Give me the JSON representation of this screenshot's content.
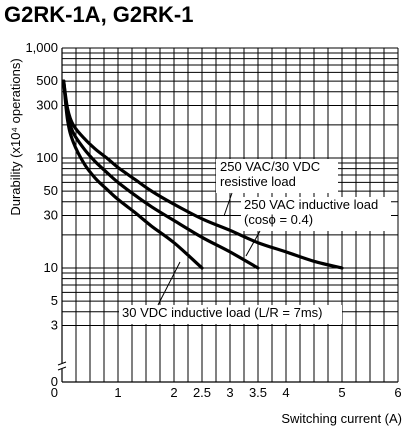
{
  "chart_data": {
    "type": "line",
    "title": "G2RK-1A, G2RK-1",
    "xlabel": "Switching current (A)",
    "ylabel": "Durability (x10⁴ operations)",
    "x_ticks": [
      {
        "value": 0,
        "label": "0"
      },
      {
        "value": 1,
        "label": "1"
      },
      {
        "value": 2,
        "label": "2"
      },
      {
        "value": 2.5,
        "label": "2.5"
      },
      {
        "value": 3,
        "label": "3"
      },
      {
        "value": 3.5,
        "label": "3.5"
      },
      {
        "value": 4,
        "label": "4"
      },
      {
        "value": 5,
        "label": "5"
      },
      {
        "value": 6,
        "label": "6"
      }
    ],
    "y_ticks": [
      {
        "value": 3,
        "label": "3"
      },
      {
        "value": 5,
        "label": "5"
      },
      {
        "value": 10,
        "label": "10"
      },
      {
        "value": 30,
        "label": "30"
      },
      {
        "value": 50,
        "label": "50"
      },
      {
        "value": 100,
        "label": "100"
      },
      {
        "value": 300,
        "label": "300"
      },
      {
        "value": 500,
        "label": "500"
      },
      {
        "value": 1000,
        "label": "1,000"
      }
    ],
    "x_zero_label": "0",
    "y_zero_label": "0",
    "xlim": [
      0,
      6
    ],
    "ylim": [
      2,
      1000
    ],
    "yscale": "log",
    "grid": true,
    "series": [
      {
        "name": "250 VAC/30 VDC resistive load",
        "x": [
          0.03,
          0.1,
          0.2,
          0.4,
          0.6,
          0.8,
          1.0,
          1.3,
          1.6,
          2.0,
          2.5,
          3.0,
          3.5,
          4.0,
          4.5,
          5.0
        ],
        "y": [
          500,
          280,
          200,
          150,
          120,
          100,
          82,
          64,
          50,
          38,
          28,
          22,
          17,
          14,
          11.5,
          10
        ]
      },
      {
        "name": "250 VAC inductive load (cosφ = 0.4)",
        "x": [
          0.03,
          0.1,
          0.2,
          0.4,
          0.6,
          0.8,
          1.0,
          1.3,
          1.6,
          2.0,
          2.5,
          3.0,
          3.5
        ],
        "y": [
          500,
          250,
          170,
          120,
          92,
          74,
          60,
          46,
          36,
          27,
          19,
          14,
          10
        ]
      },
      {
        "name": "30 VDC inductive load (L/R = 7ms)",
        "x": [
          0.03,
          0.1,
          0.2,
          0.4,
          0.6,
          0.8,
          1.0,
          1.3,
          1.6,
          2.0,
          2.5
        ],
        "y": [
          500,
          220,
          140,
          88,
          65,
          52,
          42,
          32,
          24,
          17,
          10
        ]
      }
    ],
    "annotations": [
      {
        "lines": [
          "250 VAC/30 VDC",
          "resistive load"
        ]
      },
      {
        "lines": [
          "250 VAC inductive load",
          "(cosϕ = 0.4)"
        ]
      },
      {
        "lines": [
          "30 VDC inductive load (L/R = 7ms)"
        ]
      }
    ]
  }
}
